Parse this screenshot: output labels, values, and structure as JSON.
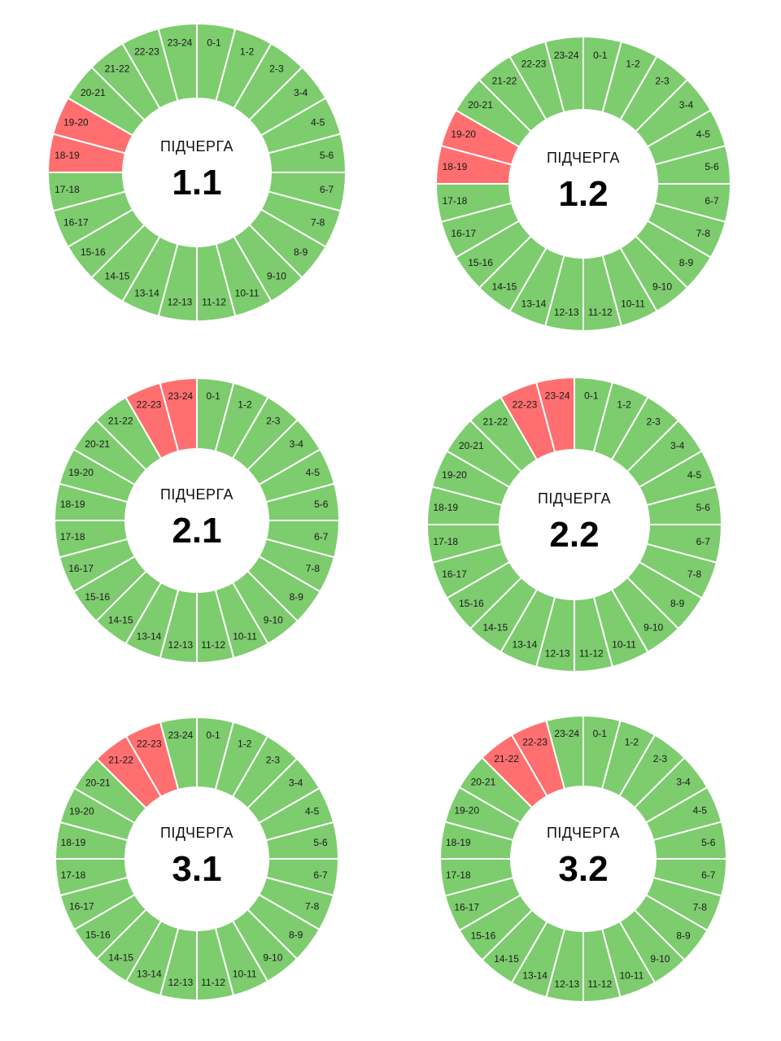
{
  "colors": {
    "on": "#7dcc6e",
    "off": "#ff6f6f",
    "divider": "#ffffff",
    "center": "#ffffff"
  },
  "chart_data": [
    {
      "type": "pie",
      "caption": "ПІДЧЕРГА",
      "number": "1.1",
      "categories": [
        "0-1",
        "1-2",
        "2-3",
        "3-4",
        "4-5",
        "5-6",
        "6-7",
        "7-8",
        "8-9",
        "9-10",
        "10-11",
        "11-12",
        "12-13",
        "13-14",
        "14-15",
        "15-16",
        "16-17",
        "17-18",
        "18-19",
        "19-20",
        "20-21",
        "21-22",
        "22-23",
        "23-24"
      ],
      "outage_hours": [
        "18-19",
        "19-20"
      ]
    },
    {
      "type": "pie",
      "caption": "ПІДЧЕРГА",
      "number": "1.2",
      "categories": [
        "0-1",
        "1-2",
        "2-3",
        "3-4",
        "4-5",
        "5-6",
        "6-7",
        "7-8",
        "8-9",
        "9-10",
        "10-11",
        "11-12",
        "12-13",
        "13-14",
        "14-15",
        "15-16",
        "16-17",
        "17-18",
        "18-19",
        "19-20",
        "20-21",
        "21-22",
        "22-23",
        "23-24"
      ],
      "outage_hours": [
        "18-19",
        "19-20"
      ]
    },
    {
      "type": "pie",
      "caption": "ПІДЧЕРГА",
      "number": "2.1",
      "categories": [
        "0-1",
        "1-2",
        "2-3",
        "3-4",
        "4-5",
        "5-6",
        "6-7",
        "7-8",
        "8-9",
        "9-10",
        "10-11",
        "11-12",
        "12-13",
        "13-14",
        "14-15",
        "15-16",
        "16-17",
        "17-18",
        "18-19",
        "19-20",
        "20-21",
        "21-22",
        "22-23",
        "23-24"
      ],
      "outage_hours": [
        "22-23",
        "23-24"
      ]
    },
    {
      "type": "pie",
      "caption": "ПІДЧЕРГА",
      "number": "2.2",
      "categories": [
        "0-1",
        "1-2",
        "2-3",
        "3-4",
        "4-5",
        "5-6",
        "6-7",
        "7-8",
        "8-9",
        "9-10",
        "10-11",
        "11-12",
        "12-13",
        "13-14",
        "14-15",
        "15-16",
        "16-17",
        "17-18",
        "18-19",
        "19-20",
        "20-21",
        "21-22",
        "22-23",
        "23-24"
      ],
      "outage_hours": [
        "22-23",
        "23-24"
      ]
    },
    {
      "type": "pie",
      "caption": "ПІДЧЕРГА",
      "number": "3.1",
      "categories": [
        "0-1",
        "1-2",
        "2-3",
        "3-4",
        "4-5",
        "5-6",
        "6-7",
        "7-8",
        "8-9",
        "9-10",
        "10-11",
        "11-12",
        "12-13",
        "13-14",
        "14-15",
        "15-16",
        "16-17",
        "17-18",
        "18-19",
        "19-20",
        "20-21",
        "21-22",
        "22-23",
        "23-24"
      ],
      "outage_hours": [
        "21-22",
        "22-23"
      ]
    },
    {
      "type": "pie",
      "caption": "ПІДЧЕРГА",
      "number": "3.2",
      "categories": [
        "0-1",
        "1-2",
        "2-3",
        "3-4",
        "4-5",
        "5-6",
        "6-7",
        "7-8",
        "8-9",
        "9-10",
        "10-11",
        "11-12",
        "12-13",
        "13-14",
        "14-15",
        "15-16",
        "16-17",
        "17-18",
        "18-19",
        "19-20",
        "20-21",
        "21-22",
        "22-23",
        "23-24"
      ],
      "outage_hours": [
        "21-22",
        "22-23"
      ]
    }
  ]
}
